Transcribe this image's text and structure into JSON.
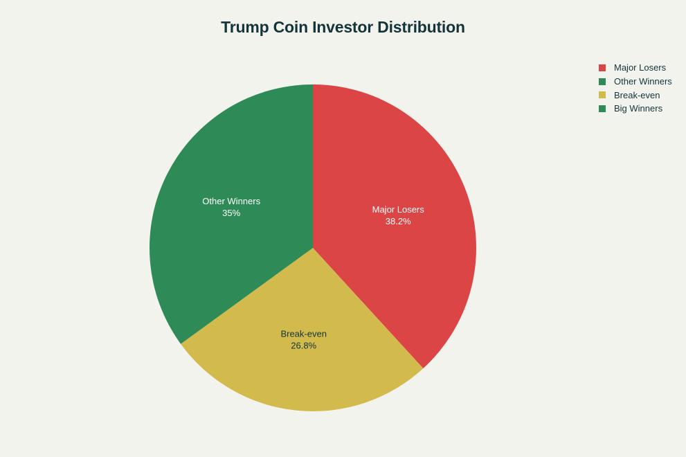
{
  "chart_data": {
    "type": "pie",
    "title": "Trump Coin Investor Distribution",
    "slices": [
      {
        "name": "Major Losers",
        "value": 38.2,
        "label": "38.2%",
        "color": "#db4545",
        "text_color": "#ffffff"
      },
      {
        "name": "Other Winners",
        "value": 0,
        "label": "",
        "color": "#2e8b57",
        "text_color": "#ffffff"
      },
      {
        "name": "Break-even",
        "value": 26.8,
        "label": "26.8%",
        "color": "#d2ba4c",
        "text_color": "#13343b"
      },
      {
        "name": "Big Winners",
        "value": 35,
        "label": "35%",
        "display_name": "Other Winners",
        "color": "#2e8b57",
        "text_color": "#ffffff"
      }
    ],
    "legend": {
      "position": "top-right",
      "entries": [
        {
          "label": "Major Losers",
          "color": "#db4545"
        },
        {
          "label": "Other Winners",
          "color": "#2e8b57"
        },
        {
          "label": "Break-even",
          "color": "#d2ba4c"
        },
        {
          "label": "Big Winners",
          "color": "#2e8b57"
        }
      ]
    },
    "start_angle_deg": 90,
    "direction": "clockwise"
  }
}
